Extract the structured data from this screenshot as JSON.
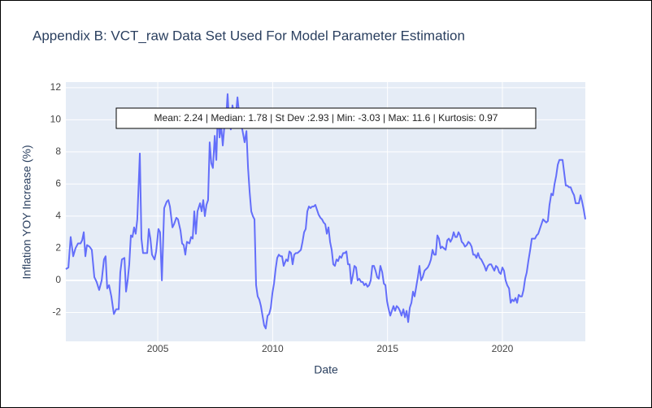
{
  "chart_data": {
    "type": "line",
    "title": "Appendix B: VCT_raw Data Set Used For Model Parameter Estimation",
    "x_label": "Date",
    "y_label": "Inflation YOY Increase (%)",
    "annotation": "Mean: 2.24 | Median: 1.78 | St Dev :2.93 | Min: -3.03 | Max: 11.6 | Kurtosis: 0.97",
    "color": "#636efa",
    "grid": true,
    "xlim": [
      2001.0,
      2023.61
    ],
    "ylim": [
      -3.8,
      12.35
    ],
    "xticks": [
      2005,
      2010,
      2015,
      2020
    ],
    "yticks": [
      -2,
      0,
      2,
      4,
      6,
      8,
      10,
      12
    ],
    "x": [
      2001.0,
      2001.11,
      2001.21,
      2001.32,
      2001.42,
      2001.53,
      2001.64,
      2001.71,
      2001.78,
      2001.85,
      2001.92,
      2002.03,
      2002.13,
      2002.24,
      2002.34,
      2002.45,
      2002.56,
      2002.66,
      2002.73,
      2002.8,
      2002.88,
      2002.98,
      2003.09,
      2003.19,
      2003.3,
      2003.37,
      2003.44,
      2003.55,
      2003.62,
      2003.69,
      2003.76,
      2003.83,
      2003.9,
      2003.97,
      2004.04,
      2004.11,
      2004.22,
      2004.29,
      2004.36,
      2004.47,
      2004.54,
      2004.61,
      2004.68,
      2004.75,
      2004.86,
      2004.93,
      2005.03,
      2005.1,
      2005.18,
      2005.28,
      2005.39,
      2005.46,
      2005.53,
      2005.64,
      2005.71,
      2005.81,
      2005.88,
      2005.99,
      2006.06,
      2006.13,
      2006.2,
      2006.27,
      2006.38,
      2006.45,
      2006.52,
      2006.59,
      2006.66,
      2006.73,
      2006.84,
      2006.91,
      2006.98,
      2007.05,
      2007.12,
      2007.19,
      2007.26,
      2007.33,
      2007.4,
      2007.48,
      2007.55,
      2007.62,
      2007.69,
      2007.76,
      2007.83,
      2007.9,
      2007.97,
      2008.04,
      2008.11,
      2008.18,
      2008.25,
      2008.32,
      2008.4,
      2008.47,
      2008.54,
      2008.61,
      2008.68,
      2008.78,
      2008.86,
      2008.93,
      2009.0,
      2009.07,
      2009.14,
      2009.21,
      2009.28,
      2009.35,
      2009.42,
      2009.49,
      2009.56,
      2009.63,
      2009.7,
      2009.78,
      2009.85,
      2009.92,
      2009.99,
      2010.06,
      2010.13,
      2010.2,
      2010.27,
      2010.34,
      2010.41,
      2010.48,
      2010.59,
      2010.66,
      2010.73,
      2010.8,
      2010.87,
      2010.94,
      2011.01,
      2011.08,
      2011.16,
      2011.23,
      2011.3,
      2011.37,
      2011.44,
      2011.51,
      2011.58,
      2011.65,
      2011.72,
      2011.79,
      2011.86,
      2011.93,
      2012.0,
      2012.08,
      2012.15,
      2012.22,
      2012.29,
      2012.36,
      2012.43,
      2012.5,
      2012.57,
      2012.64,
      2012.71,
      2012.78,
      2012.85,
      2012.92,
      2012.99,
      2013.07,
      2013.14,
      2013.21,
      2013.28,
      2013.35,
      2013.42,
      2013.49,
      2013.56,
      2013.63,
      2013.7,
      2013.77,
      2013.85,
      2013.92,
      2013.99,
      2014.06,
      2014.13,
      2014.2,
      2014.27,
      2014.34,
      2014.41,
      2014.48,
      2014.55,
      2014.62,
      2014.69,
      2014.77,
      2014.84,
      2014.91,
      2014.98,
      2015.05,
      2015.12,
      2015.19,
      2015.26,
      2015.33,
      2015.4,
      2015.47,
      2015.54,
      2015.61,
      2015.69,
      2015.76,
      2015.83,
      2015.9,
      2015.97,
      2016.04,
      2016.11,
      2016.18,
      2016.25,
      2016.32,
      2016.39,
      2016.46,
      2016.53,
      2016.61,
      2016.68,
      2016.75,
      2016.82,
      2016.89,
      2016.96,
      2017.03,
      2017.1,
      2017.17,
      2017.24,
      2017.31,
      2017.38,
      2017.45,
      2017.53,
      2017.6,
      2017.67,
      2017.74,
      2017.81,
      2017.88,
      2017.95,
      2018.02,
      2018.09,
      2018.16,
      2018.23,
      2018.3,
      2018.37,
      2018.45,
      2018.52,
      2018.59,
      2018.66,
      2018.73,
      2018.8,
      2018.87,
      2018.94,
      2019.01,
      2019.08,
      2019.15,
      2019.22,
      2019.29,
      2019.37,
      2019.44,
      2019.51,
      2019.58,
      2019.65,
      2019.72,
      2019.79,
      2019.86,
      2019.93,
      2020.0,
      2020.07,
      2020.14,
      2020.21,
      2020.29,
      2020.36,
      2020.43,
      2020.5,
      2020.57,
      2020.64,
      2020.71,
      2020.78,
      2020.85,
      2020.92,
      2020.99,
      2021.06,
      2021.13,
      2021.21,
      2021.28,
      2021.35,
      2021.42,
      2021.49,
      2021.56,
      2021.63,
      2021.7,
      2021.77,
      2021.84,
      2021.91,
      2021.98,
      2022.05,
      2022.13,
      2022.2,
      2022.27,
      2022.34,
      2022.41,
      2022.48,
      2022.55,
      2022.62,
      2022.69,
      2022.76,
      2022.83,
      2022.9,
      2022.97,
      2023.05,
      2023.12,
      2023.19,
      2023.26,
      2023.33,
      2023.4,
      2023.47,
      2023.54,
      2023.61
    ],
    "values": [
      0.7,
      0.8,
      2.7,
      1.5,
      2.0,
      2.3,
      2.3,
      2.5,
      3.0,
      1.5,
      2.2,
      2.1,
      1.9,
      0.2,
      -0.1,
      -0.6,
      0.0,
      1.3,
      1.5,
      -0.5,
      -0.3,
      -1.0,
      -2.1,
      -1.8,
      -1.8,
      0.5,
      1.3,
      1.4,
      -0.7,
      0.0,
      1.0,
      2.8,
      2.7,
      3.3,
      2.9,
      3.8,
      7.9,
      2.6,
      1.7,
      1.7,
      1.7,
      3.2,
      2.6,
      1.6,
      1.3,
      1.8,
      3.2,
      3.0,
      0.0,
      4.5,
      4.9,
      5.0,
      4.6,
      3.3,
      3.5,
      3.9,
      3.8,
      3.1,
      2.3,
      2.2,
      1.6,
      2.4,
      2.3,
      2.7,
      2.6,
      4.3,
      2.9,
      4.3,
      4.8,
      4.3,
      5.0,
      4.0,
      4.7,
      5.0,
      8.6,
      7.3,
      7.0,
      9.0,
      7.5,
      10.7,
      8.9,
      9.6,
      8.4,
      9.6,
      10.0,
      11.6,
      9.8,
      9.4,
      10.9,
      10.4,
      10.3,
      11.4,
      10.4,
      9.6,
      9.4,
      8.6,
      9.3,
      7.0,
      5.5,
      4.3,
      4.0,
      3.8,
      -0.3,
      -1.0,
      -1.2,
      -1.6,
      -2.2,
      -2.8,
      -3.0,
      -2.2,
      -2.1,
      -1.7,
      -0.8,
      -0.2,
      0.7,
      1.4,
      1.6,
      1.5,
      1.5,
      0.9,
      1.3,
      1.2,
      1.8,
      1.7,
      1.0,
      1.6,
      1.7,
      1.7,
      1.8,
      1.9,
      2.4,
      3.0,
      3.2,
      4.3,
      4.6,
      4.5,
      4.6,
      4.6,
      4.7,
      4.4,
      4.1,
      3.9,
      3.8,
      3.6,
      3.5,
      2.9,
      3.3,
      2.4,
      1.9,
      1.0,
      0.9,
      1.3,
      1.2,
      1.5,
      1.4,
      1.7,
      1.7,
      1.8,
      1.0,
      1.0,
      -0.2,
      0.3,
      0.9,
      0.8,
      0.0,
      0.1,
      -0.1,
      -0.1,
      -0.3,
      -0.2,
      -0.4,
      -0.3,
      0.0,
      0.9,
      0.9,
      0.6,
      0.2,
      0.1,
      0.9,
      0.5,
      -0.2,
      -0.3,
      -1.3,
      -1.8,
      -2.2,
      -1.9,
      -1.6,
      -1.9,
      -1.6,
      -1.7,
      -1.9,
      -2.2,
      -1.8,
      -2.3,
      -1.9,
      -2.6,
      -1.7,
      -1.4,
      -0.7,
      -1.0,
      -0.4,
      0.2,
      0.9,
      0.0,
      0.2,
      0.6,
      0.7,
      0.8,
      1.0,
      1.3,
      1.9,
      1.6,
      1.6,
      2.8,
      2.6,
      2.0,
      2.1,
      2.0,
      1.9,
      2.5,
      2.6,
      2.4,
      2.6,
      3.0,
      2.7,
      2.7,
      3.0,
      2.8,
      2.4,
      2.3,
      2.1,
      2.2,
      2.4,
      2.3,
      2.1,
      1.6,
      1.6,
      1.4,
      1.7,
      1.4,
      1.3,
      1.1,
      0.9,
      0.6,
      0.9,
      1.0,
      1.0,
      0.8,
      0.6,
      0.9,
      0.8,
      0.5,
      0.4,
      0.8,
      0.6,
      0.0,
      -0.3,
      -0.5,
      -1.4,
      -1.2,
      -1.3,
      -1.1,
      -1.4,
      -0.9,
      -1.0,
      -1.0,
      -0.6,
      0.1,
      0.5,
      1.2,
      1.9,
      2.6,
      2.6,
      2.6,
      2.8,
      2.9,
      3.2,
      3.5,
      3.8,
      3.7,
      3.6,
      3.7,
      4.7,
      5.4,
      5.3,
      6.0,
      6.5,
      7.2,
      7.5,
      7.5,
      7.5,
      6.7,
      5.9,
      5.9,
      5.8,
      5.8,
      5.5,
      5.3,
      4.8,
      4.8,
      4.8,
      5.3,
      4.9,
      4.4,
      3.8
    ]
  }
}
